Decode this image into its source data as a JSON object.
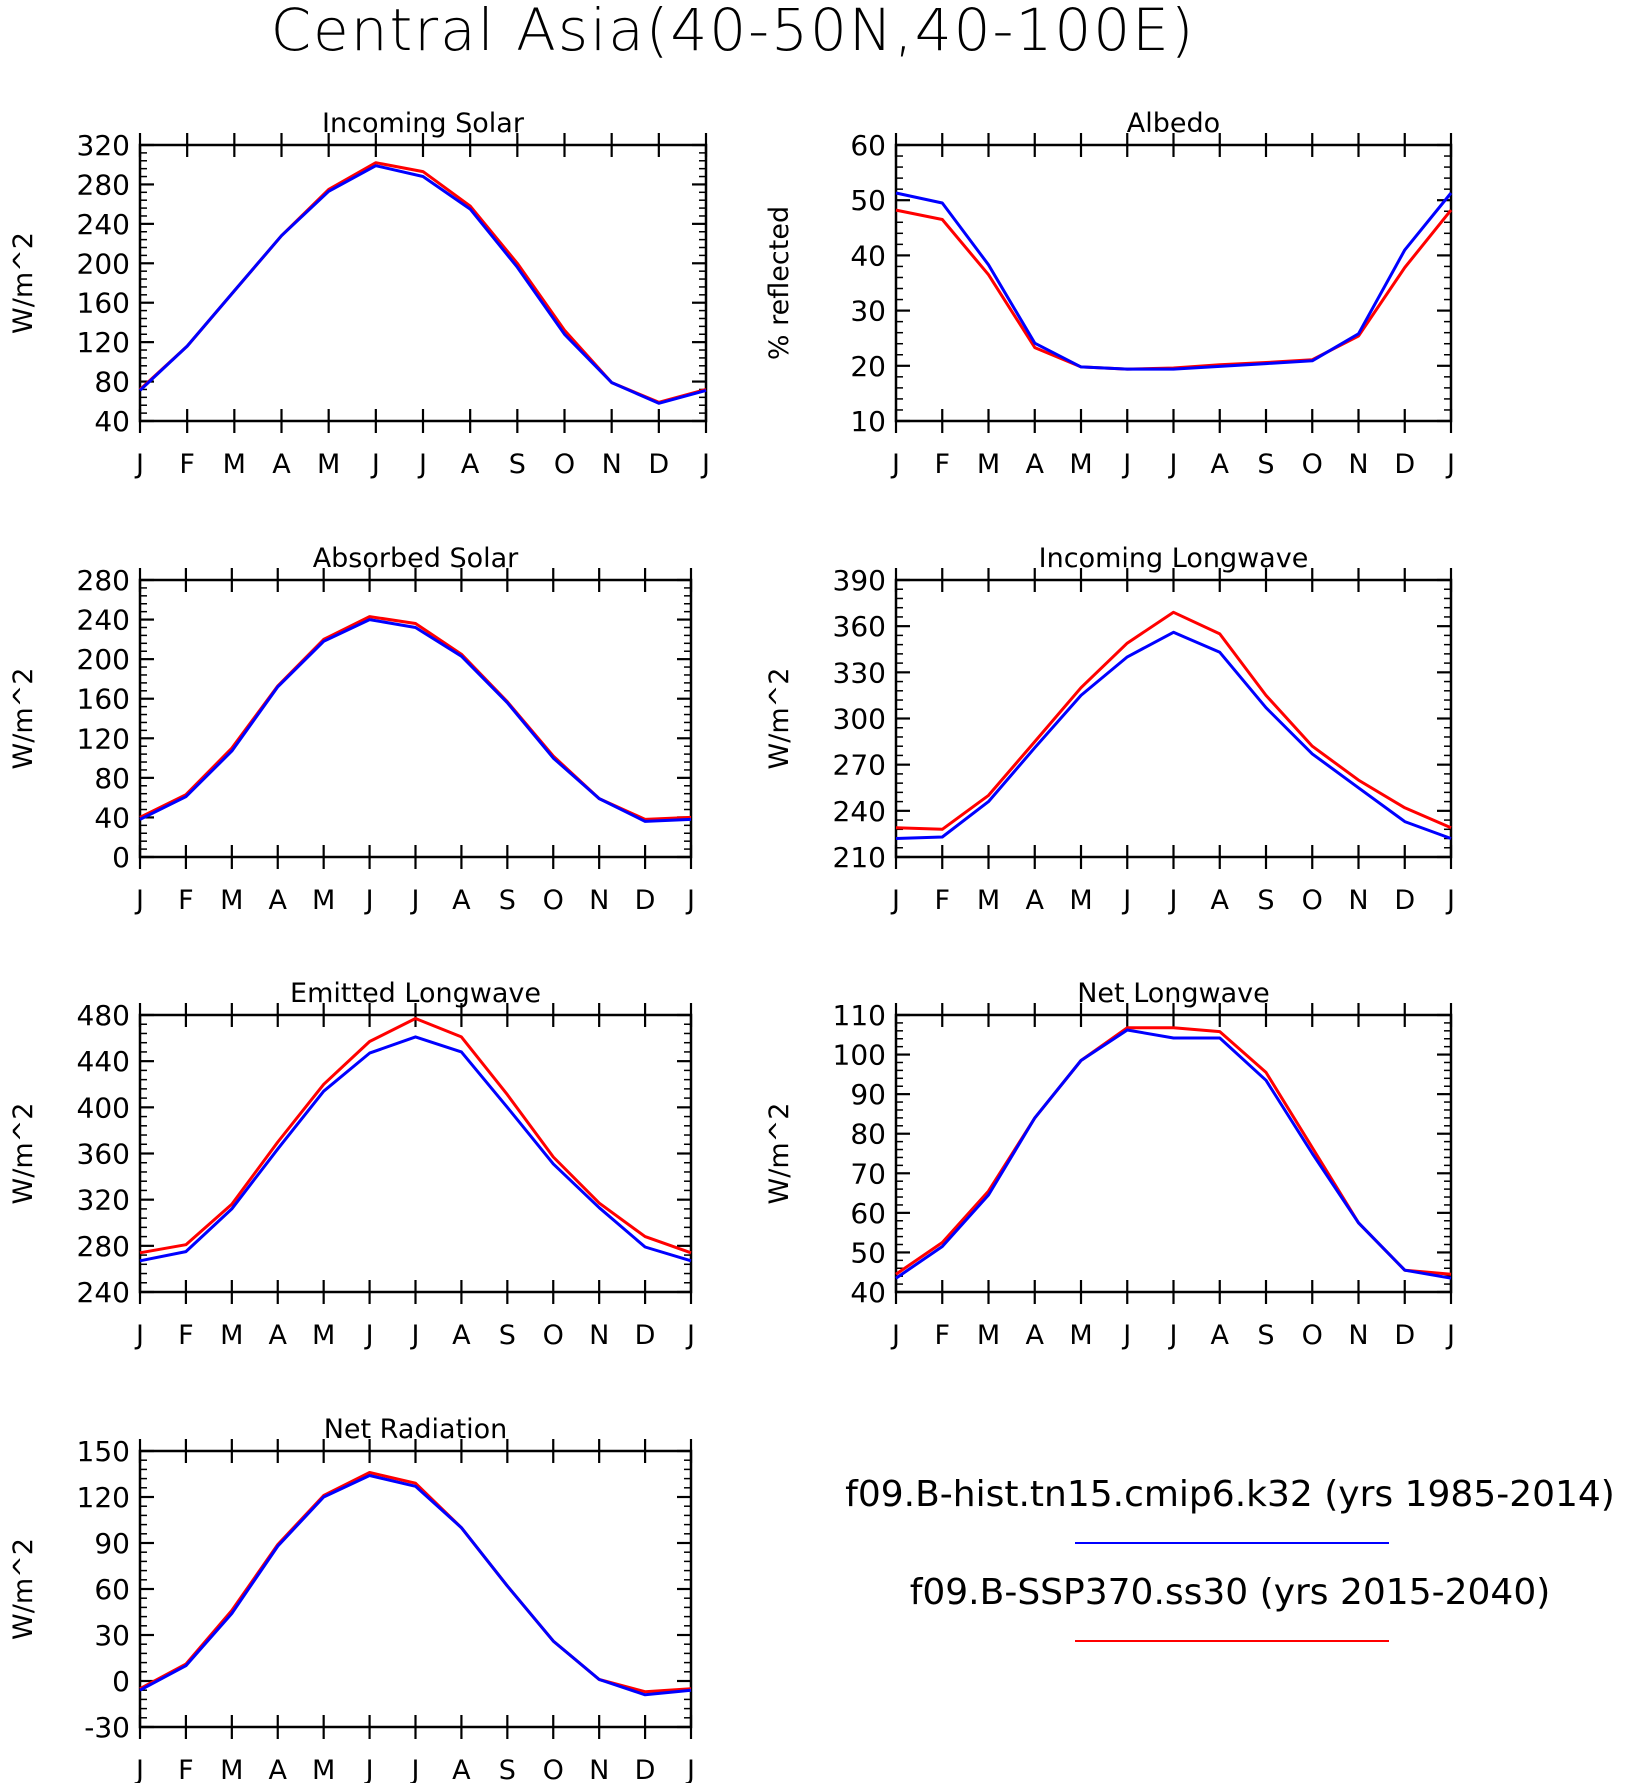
{
  "figure": {
    "title": "Central Asia(40-50N,40-100E)",
    "colors": {
      "hist": "#0000ff",
      "ssp": "#ff0000",
      "axis": "#000000"
    }
  },
  "legend": {
    "entries": [
      {
        "label": "f09.B-hist.tn15.cmip6.k32 (yrs 1985-2014)",
        "color": "#0000ff"
      },
      {
        "label": "f09.B-SSP370.ss30 (yrs 2015-2040)",
        "color": "#ff0000"
      }
    ]
  },
  "chart_data": [
    {
      "type": "line",
      "title": "Incoming Solar",
      "ylabel": "W/m^2",
      "ylim": [
        40,
        320
      ],
      "yticks": [
        40,
        80,
        120,
        160,
        200,
        240,
        280,
        320
      ],
      "categories": [
        "J",
        "F",
        "M",
        "A",
        "M",
        "J",
        "J",
        "A",
        "S",
        "O",
        "N",
        "D",
        "J"
      ],
      "series": [
        {
          "color": "#ff0000",
          "values": [
            72,
            116,
            172,
            228,
            275,
            302,
            293,
            258,
            200,
            132,
            79,
            59,
            72
          ]
        },
        {
          "color": "#0000ff",
          "values": [
            71,
            116,
            172,
            228,
            273,
            299,
            288,
            255,
            196,
            128,
            79,
            58,
            71
          ]
        }
      ]
    },
    {
      "type": "line",
      "title": "Albedo",
      "ylabel": "% reflected",
      "ylim": [
        10,
        60
      ],
      "yticks": [
        10,
        20,
        30,
        40,
        50,
        60
      ],
      "categories": [
        "J",
        "F",
        "M",
        "A",
        "M",
        "J",
        "J",
        "A",
        "S",
        "O",
        "N",
        "D",
        "J"
      ],
      "series": [
        {
          "color": "#ff0000",
          "values": [
            48.2,
            46.5,
            36.5,
            23.3,
            19.8,
            19.4,
            19.6,
            20.2,
            20.6,
            21.1,
            25.4,
            37.8,
            48.2
          ]
        },
        {
          "color": "#0000ff",
          "values": [
            51.3,
            49.5,
            38.3,
            24.1,
            19.8,
            19.4,
            19.4,
            19.9,
            20.4,
            20.9,
            25.8,
            41.0,
            51.3
          ]
        }
      ]
    },
    {
      "type": "line",
      "title": "Absorbed Solar",
      "ylabel": "W/m^2",
      "ylim": [
        0,
        280
      ],
      "yticks": [
        0,
        40,
        80,
        120,
        160,
        200,
        240,
        280
      ],
      "categories": [
        "J",
        "F",
        "M",
        "A",
        "M",
        "J",
        "J",
        "A",
        "S",
        "O",
        "N",
        "D",
        "J"
      ],
      "series": [
        {
          "color": "#ff0000",
          "values": [
            40,
            63,
            110,
            173,
            220,
            243,
            236,
            205,
            157,
            102,
            59,
            38,
            40
          ]
        },
        {
          "color": "#0000ff",
          "values": [
            38,
            61,
            107,
            172,
            218,
            240,
            232,
            203,
            156,
            100,
            59,
            36,
            38
          ]
        }
      ]
    },
    {
      "type": "line",
      "title": "Incoming Longwave",
      "ylabel": "W/m^2",
      "ylim": [
        210,
        390
      ],
      "yticks": [
        210,
        240,
        270,
        300,
        330,
        360,
        390
      ],
      "categories": [
        "J",
        "F",
        "M",
        "A",
        "M",
        "J",
        "J",
        "A",
        "S",
        "O",
        "N",
        "D",
        "J"
      ],
      "series": [
        {
          "color": "#ff0000",
          "values": [
            229,
            228,
            250,
            285,
            320,
            349,
            369,
            355,
            315,
            282,
            260,
            242,
            229
          ]
        },
        {
          "color": "#0000ff",
          "values": [
            222,
            223,
            246,
            281,
            315,
            340,
            356,
            343,
            307,
            277,
            255,
            233,
            222
          ]
        }
      ]
    },
    {
      "type": "line",
      "title": "Emitted Longwave",
      "ylabel": "W/m^2",
      "ylim": [
        240,
        480
      ],
      "yticks": [
        240,
        280,
        320,
        360,
        400,
        440,
        480
      ],
      "categories": [
        "J",
        "F",
        "M",
        "A",
        "M",
        "J",
        "J",
        "A",
        "S",
        "O",
        "N",
        "D",
        "J"
      ],
      "series": [
        {
          "color": "#ff0000",
          "values": [
            274,
            281,
            316,
            370,
            420,
            457,
            477,
            461,
            411,
            357,
            317,
            288,
            274
          ]
        },
        {
          "color": "#0000ff",
          "values": [
            267,
            275,
            312,
            364,
            414,
            447,
            461,
            448,
            400,
            351,
            313,
            279,
            267
          ]
        }
      ]
    },
    {
      "type": "line",
      "title": "Net Longwave",
      "ylabel": "W/m^2",
      "ylim": [
        40,
        110
      ],
      "yticks": [
        40,
        50,
        60,
        70,
        80,
        90,
        100,
        110
      ],
      "categories": [
        "J",
        "F",
        "M",
        "A",
        "M",
        "J",
        "J",
        "A",
        "S",
        "O",
        "N",
        "D",
        "J"
      ],
      "series": [
        {
          "color": "#ff0000",
          "values": [
            44.5,
            52.5,
            65.5,
            84,
            98.5,
            106.8,
            106.8,
            105.8,
            95.5,
            76.5,
            57.5,
            45.5,
            44.5
          ]
        },
        {
          "color": "#0000ff",
          "values": [
            43.5,
            51.5,
            64.5,
            84,
            98.5,
            106.2,
            104.2,
            104.2,
            93.5,
            75,
            57.5,
            45.5,
            43.5
          ]
        }
      ]
    },
    {
      "type": "line",
      "title": "Net Radiation",
      "ylabel": "W/m^2",
      "ylim": [
        -30,
        150
      ],
      "yticks": [
        -30,
        0,
        30,
        60,
        90,
        120,
        150
      ],
      "categories": [
        "J",
        "F",
        "M",
        "A",
        "M",
        "J",
        "J",
        "A",
        "S",
        "O",
        "N",
        "D",
        "J"
      ],
      "series": [
        {
          "color": "#ff0000",
          "values": [
            -5,
            11,
            46,
            89,
            121,
            136,
            129,
            100,
            62,
            26,
            1,
            -7,
            -5
          ]
        },
        {
          "color": "#0000ff",
          "values": [
            -6,
            10,
            44,
            88,
            120,
            134,
            127,
            100,
            62,
            26,
            1,
            -9,
            -6
          ]
        }
      ]
    }
  ]
}
